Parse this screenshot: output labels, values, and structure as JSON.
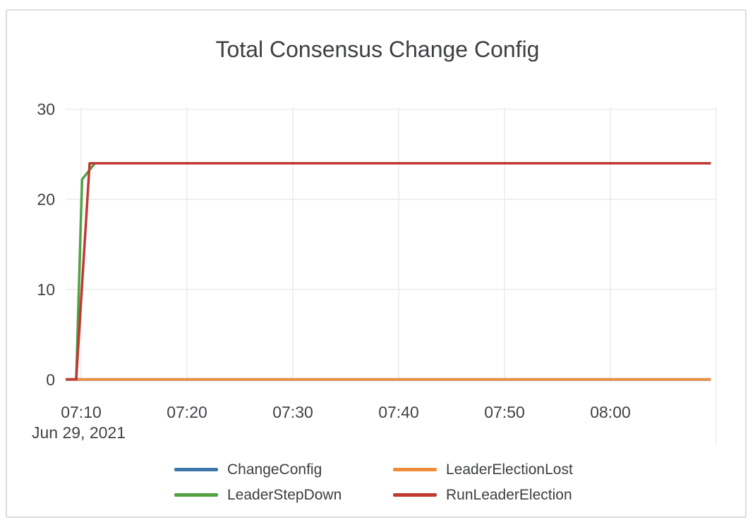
{
  "window": {
    "background_color": "#ffffff",
    "border_color": "#dcdcdc"
  },
  "chart_data": {
    "type": "line",
    "title": "Total Consensus Change Config",
    "x_axis": {
      "date_label": "Jun 29, 2021",
      "tick_labels": [
        "07:10",
        "07:20",
        "07:30",
        "07:40",
        "07:50",
        "08:00"
      ],
      "extra_gridline_time": "08:10",
      "range": [
        "07:08:32",
        "08:10:00"
      ]
    },
    "y_axis": {
      "ticks": [
        0,
        10,
        20,
        30
      ],
      "range": [
        0,
        30
      ],
      "max_tick": 30
    },
    "grid": "on",
    "legend_position": "bottom",
    "plateau_value": 24,
    "series": [
      {
        "name": "ChangeConfig",
        "color": "#3d76a8",
        "points": [
          [
            "07:08:32",
            0
          ],
          [
            "08:09:30",
            0
          ]
        ]
      },
      {
        "name": "LeaderElectionLost",
        "color": "#ee8c37",
        "points": [
          [
            "07:08:32",
            0
          ],
          [
            "08:09:30",
            0
          ]
        ]
      },
      {
        "name": "LeaderStepDown",
        "color": "#52a143",
        "points": [
          [
            "07:08:32",
            0
          ],
          [
            "07:09:32",
            0
          ],
          [
            "07:10:05",
            22.2
          ],
          [
            "07:11:18",
            24
          ],
          [
            "08:09:30",
            24
          ]
        ]
      },
      {
        "name": "RunLeaderElection",
        "color": "#c03933",
        "points": [
          [
            "07:08:32",
            0
          ],
          [
            "07:09:32",
            0
          ],
          [
            "07:10:48",
            24
          ],
          [
            "08:09:30",
            24
          ]
        ]
      }
    ],
    "gridline_color": "#ebebeb",
    "axis_line_color": "#474038",
    "text_color": "#3f4245",
    "title_color": "#3d4043"
  }
}
